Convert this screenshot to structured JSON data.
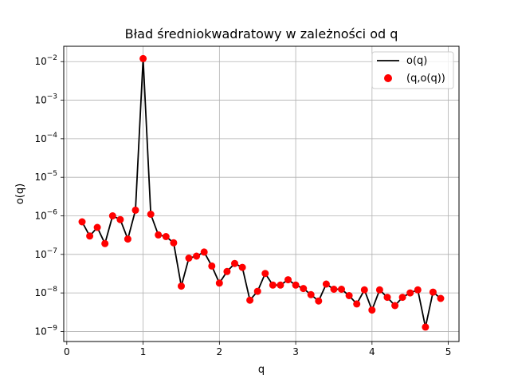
{
  "chart_data": {
    "type": "line",
    "title": "Bład średniokwadratowy w zależności od q",
    "xlabel": "q",
    "ylabel": "o(q)",
    "xlim": [
      -0.04,
      5.14
    ],
    "ylim": [
      5.5e-10,
      0.025
    ],
    "yscale": "log",
    "grid": true,
    "legend_position": "top-right",
    "x_ticks": [
      0,
      1,
      2,
      3,
      4,
      5
    ],
    "y_ticks": [
      {
        "value": 1e-09,
        "label": "10",
        "exp": "−9"
      },
      {
        "value": 1e-08,
        "label": "10",
        "exp": "−8"
      },
      {
        "value": 1e-07,
        "label": "10",
        "exp": "−7"
      },
      {
        "value": 1e-06,
        "label": "10",
        "exp": "−6"
      },
      {
        "value": 1e-05,
        "label": "10",
        "exp": "−5"
      },
      {
        "value": 0.0001,
        "label": "10",
        "exp": "−4"
      },
      {
        "value": 0.001,
        "label": "10",
        "exp": "−3"
      },
      {
        "value": 0.01,
        "label": "10",
        "exp": "−2"
      }
    ],
    "series": [
      {
        "name": "o(q)",
        "kind": "line",
        "color": "#000000"
      },
      {
        "name": "(q,o(q))",
        "kind": "scatter",
        "color": "#ff0000"
      }
    ],
    "x": [
      0.2,
      0.3,
      0.4,
      0.5,
      0.6,
      0.7,
      0.8,
      0.9,
      1.0,
      1.1,
      1.2,
      1.3,
      1.4,
      1.5,
      1.6,
      1.7,
      1.8,
      1.9,
      2.0,
      2.1,
      2.2,
      2.3,
      2.4,
      2.5,
      2.6,
      2.7,
      2.8,
      2.9,
      3.0,
      3.1,
      3.2,
      3.3,
      3.4,
      3.5,
      3.6,
      3.7,
      3.8,
      3.9,
      4.0,
      4.1,
      4.2,
      4.3,
      4.4,
      4.5,
      4.6,
      4.7,
      4.8,
      4.9
    ],
    "y": [
      7e-07,
      3e-07,
      5e-07,
      1.9e-07,
      1e-06,
      8e-07,
      2.5e-07,
      1.4e-06,
      0.012,
      1.1e-06,
      3.2e-07,
      2.9e-07,
      2e-07,
      1.5e-08,
      8e-08,
      9e-08,
      1.15e-07,
      5e-08,
      1.8e-08,
      3.6e-08,
      5.8e-08,
      4.6e-08,
      6.5e-09,
      1.1e-08,
      3.2e-08,
      1.6e-08,
      1.6e-08,
      2.2e-08,
      1.6e-08,
      1.3e-08,
      9e-09,
      6.2e-09,
      1.7e-08,
      1.25e-08,
      1.25e-08,
      8.5e-09,
      5.2e-09,
      1.2e-08,
      3.6e-09,
      1.2e-08,
      7.7e-09,
      4.7e-09,
      7.7e-09,
      1e-08,
      1.2e-08,
      1.3e-09,
      1.05e-08,
      7.2e-09
    ]
  }
}
